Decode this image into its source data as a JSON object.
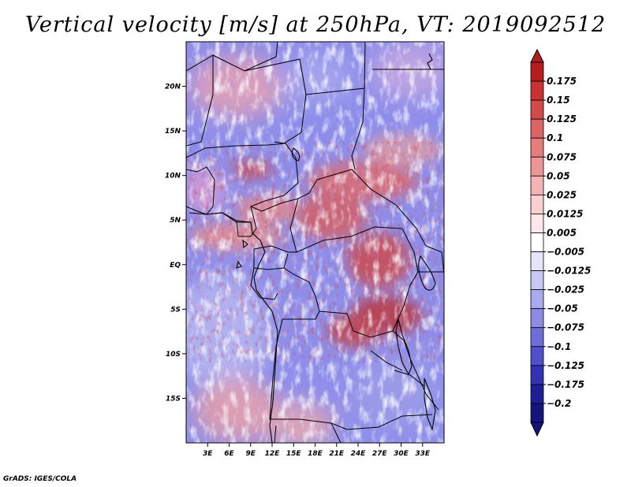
{
  "title": "Vertical velocity [m/s] at 250hPa, VT: 2019092512",
  "footer": "GrADS: IGES/COLA",
  "map": {
    "lon_range": [
      0,
      36
    ],
    "lat_range": [
      -20,
      25
    ],
    "x_ticks": [
      "3E",
      "6E",
      "9E",
      "12E",
      "15E",
      "18E",
      "21E",
      "24E",
      "27E",
      "30E",
      "33E"
    ],
    "x_tick_values": [
      3,
      6,
      9,
      12,
      15,
      18,
      21,
      24,
      27,
      30,
      33
    ],
    "y_ticks": [
      "20N",
      "15N",
      "10N",
      "5N",
      "EQ",
      "5S",
      "10S",
      "15S"
    ],
    "y_tick_values": [
      20,
      15,
      10,
      5,
      0,
      -5,
      -10,
      -15
    ]
  },
  "colorbar": {
    "labels": [
      "0.175",
      "0.15",
      "0.125",
      "0.1",
      "0.075",
      "0.05",
      "0.025",
      "0.0125",
      "0.005",
      "−0.005",
      "−0.0125",
      "−0.025",
      "−0.05",
      "−0.075",
      "−0.1",
      "−0.125",
      "−0.175",
      "−0.2"
    ],
    "colors": [
      "#b41e1e",
      "#c83232",
      "#d24b4b",
      "#dc6464",
      "#e67d7d",
      "#ee9696",
      "#f4b4b4",
      "#f8d0d0",
      "#fce8e8",
      "#ffffff",
      "#e4e4fa",
      "#c8c8f4",
      "#aaaaee",
      "#8c8ce4",
      "#6e6ed8",
      "#5050cc",
      "#3232b4",
      "#1e1e96",
      "#14147d"
    ]
  }
}
